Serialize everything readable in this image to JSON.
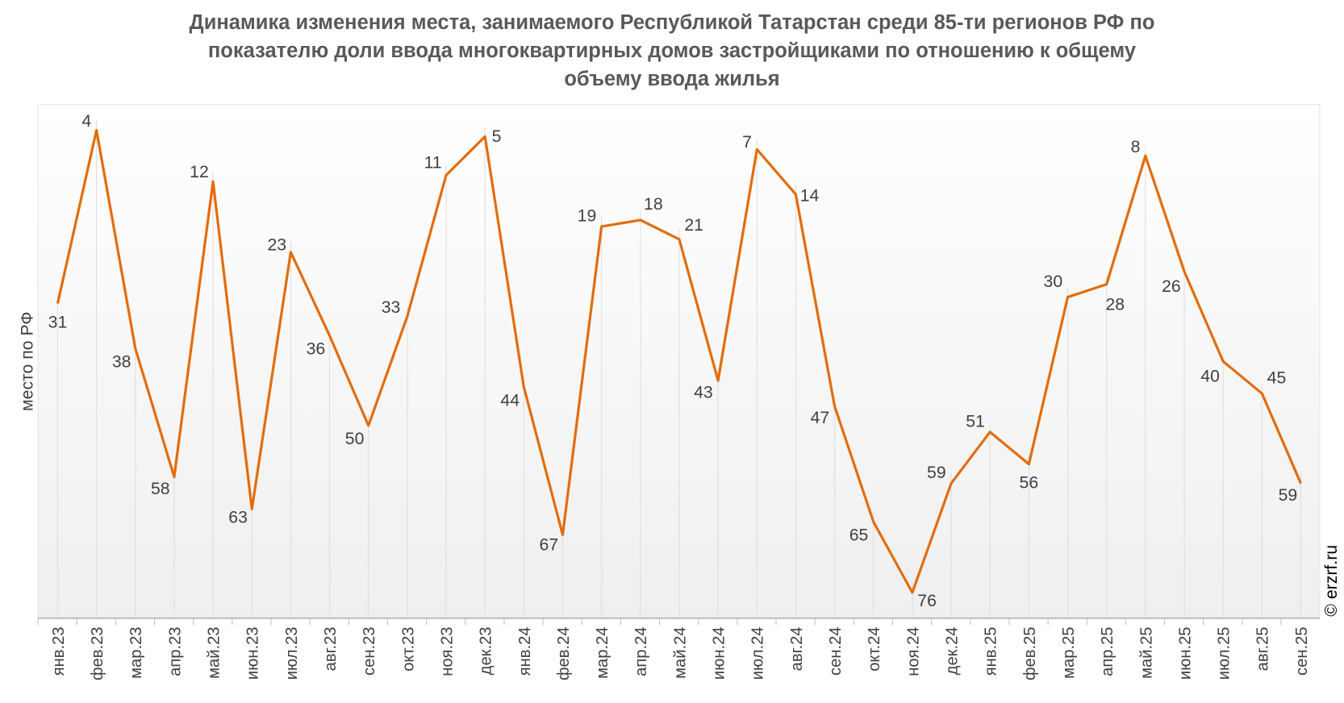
{
  "chart_data": {
    "type": "line",
    "title": "Динамика изменения места, занимаемого Республикой Татарстан среди 85-ти регионов РФ по показателю доли ввода многоквартирных домов застройщиками по отношению к общему объему ввода жилья",
    "title_lines": [
      "Динамика изменения места, занимаемого Республикой Татарстан среди 85-ти регионов РФ по",
      "показателю доли ввода многоквартирных домов застройщиками по отношению к общему",
      "объему ввода жилья"
    ],
    "xlabel": "",
    "ylabel": "место по РФ",
    "y_reversed": true,
    "ylim": [
      80,
      0
    ],
    "grid": "vertical",
    "legend": "none",
    "categories": [
      "янв.23",
      "фев.23",
      "мар.23",
      "апр.23",
      "май.23",
      "июн.23",
      "июл.23",
      "авг.23",
      "сен.23",
      "окт.23",
      "ноя.23",
      "дек.23",
      "янв.24",
      "фев.24",
      "мар.24",
      "апр.24",
      "май.24",
      "июн.24",
      "июл.24",
      "авг.24",
      "сен.24",
      "окт.24",
      "ноя.24",
      "дек.24",
      "янв.25",
      "фев.25",
      "мар.25",
      "апр.25",
      "май.25",
      "июн.25",
      "июл.25",
      "авг.25",
      "сен.25"
    ],
    "values": [
      31,
      4,
      38,
      58,
      12,
      63,
      23,
      36,
      50,
      33,
      11,
      5,
      44,
      67,
      19,
      18,
      21,
      43,
      7,
      14,
      47,
      65,
      76,
      59,
      51,
      56,
      30,
      28,
      8,
      26,
      40,
      45,
      59
    ],
    "line_color": "#E36C0A"
  },
  "watermark": "© erzrf.ru"
}
